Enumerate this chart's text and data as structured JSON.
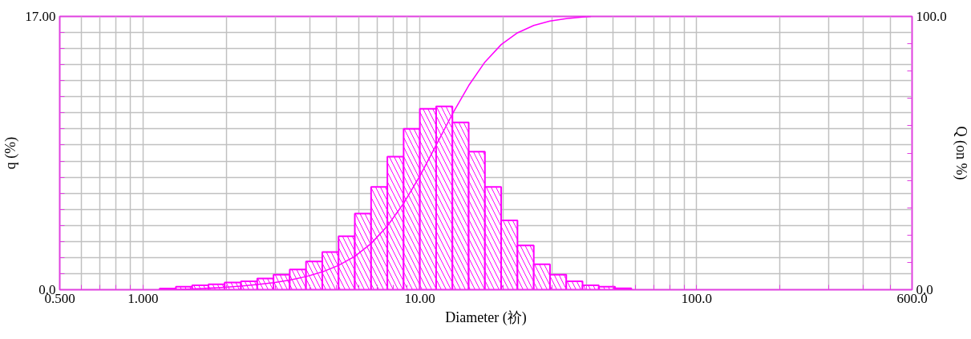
{
  "chart_data": {
    "type": "histogram",
    "xlabel": "Diameter (祄)",
    "ylabel": "q (%)",
    "y2label": "Q (on %)",
    "bins": [
      1.148,
      1.314,
      1.505,
      1.723,
      1.972,
      2.258,
      2.585,
      2.96,
      3.388,
      3.879,
      4.441,
      5.085,
      5.821,
      6.665,
      7.631,
      8.736,
      10.0,
      11.45,
      13.11,
      15.01,
      17.18,
      19.67,
      22.52,
      25.79,
      29.52,
      33.8,
      38.7,
      44.3,
      50.72,
      58.07
    ],
    "values": [
      0.08,
      0.19,
      0.28,
      0.34,
      0.45,
      0.52,
      0.7,
      0.94,
      1.26,
      1.76,
      2.34,
      3.33,
      4.73,
      6.39,
      8.27,
      10.01,
      11.26,
      11.41,
      10.41,
      8.59,
      6.39,
      4.31,
      2.76,
      1.58,
      0.94,
      0.52,
      0.28,
      0.19,
      0.09
    ],
    "color": "#ff00ff",
    "series": [
      {
        "type": "line",
        "axis": "y2",
        "color": "#ff00ff",
        "x": [
          1.148,
          1.314,
          1.505,
          1.723,
          1.972,
          2.258,
          2.585,
          2.96,
          3.388,
          3.879,
          4.441,
          5.085,
          5.821,
          6.665,
          7.631,
          8.736,
          10.0,
          11.45,
          13.11,
          15.01,
          17.18,
          19.67,
          22.52,
          25.79,
          29.52,
          33.8,
          38.7,
          41.5
        ],
        "values": [
          0,
          0.1,
          0.3,
          0.6,
          0.9,
          1.3,
          1.9,
          2.6,
          3.5,
          4.8,
          6.5,
          8.9,
          12.2,
          16.9,
          23.3,
          31.6,
          41.6,
          52.9,
          64.3,
          74.7,
          83.3,
          89.7,
          94.0,
          96.7,
          98.3,
          99.2,
          99.8,
          100
        ]
      }
    ],
    "log": "x",
    "grid": true,
    "xlim": [
      0.5,
      600
    ],
    "xticks": [
      {
        "value": 0.5,
        "label": "0.500"
      },
      {
        "value": 0.6,
        "label": null
      },
      {
        "value": 0.7,
        "label": null
      },
      {
        "value": 0.8,
        "label": null
      },
      {
        "value": 0.9,
        "label": null
      },
      {
        "value": 1,
        "label": "1.000"
      },
      {
        "value": 2,
        "label": null
      },
      {
        "value": 3,
        "label": null
      },
      {
        "value": 4,
        "label": null
      },
      {
        "value": 5,
        "label": null
      },
      {
        "value": 6,
        "label": null
      },
      {
        "value": 7,
        "label": null
      },
      {
        "value": 8,
        "label": null
      },
      {
        "value": 9,
        "label": null
      },
      {
        "value": 10,
        "label": "10.00"
      },
      {
        "value": 20,
        "label": null
      },
      {
        "value": 30,
        "label": null
      },
      {
        "value": 40,
        "label": null
      },
      {
        "value": 50,
        "label": null
      },
      {
        "value": 60,
        "label": null
      },
      {
        "value": 70,
        "label": null
      },
      {
        "value": 80,
        "label": null
      },
      {
        "value": 90,
        "label": null
      },
      {
        "value": 100,
        "label": "100.0"
      },
      {
        "value": 200,
        "label": null
      },
      {
        "value": 300,
        "label": null
      },
      {
        "value": 400,
        "label": null
      },
      {
        "value": 500,
        "label": null
      },
      {
        "value": 600,
        "label": "600.0"
      }
    ],
    "ylim": [
      0,
      17
    ],
    "yticks": [
      {
        "value": 0,
        "label": "0.0"
      },
      {
        "value": 1,
        "label": null
      },
      {
        "value": 2,
        "label": null
      },
      {
        "value": 3,
        "label": null
      },
      {
        "value": 4,
        "label": null
      },
      {
        "value": 5,
        "label": null
      },
      {
        "value": 6,
        "label": null
      },
      {
        "value": 7,
        "label": null
      },
      {
        "value": 8,
        "label": null
      },
      {
        "value": 9,
        "label": null
      },
      {
        "value": 10,
        "label": null
      },
      {
        "value": 11,
        "label": null
      },
      {
        "value": 12,
        "label": null
      },
      {
        "value": 13,
        "label": null
      },
      {
        "value": 14,
        "label": null
      },
      {
        "value": 15,
        "label": null
      },
      {
        "value": 16,
        "label": null
      },
      {
        "value": 17,
        "label": "17.00"
      }
    ],
    "y2lim": [
      0,
      100
    ],
    "y2ticks": [
      {
        "value": 0,
        "label": "0.0"
      },
      {
        "value": 10,
        "label": null
      },
      {
        "value": 20,
        "label": null
      },
      {
        "value": 30,
        "label": null
      },
      {
        "value": 40,
        "label": null
      },
      {
        "value": 50,
        "label": null
      },
      {
        "value": 60,
        "label": null
      },
      {
        "value": 70,
        "label": null
      },
      {
        "value": 80,
        "label": null
      },
      {
        "value": 90,
        "label": null
      },
      {
        "value": 100,
        "label": "100.0"
      }
    ]
  }
}
